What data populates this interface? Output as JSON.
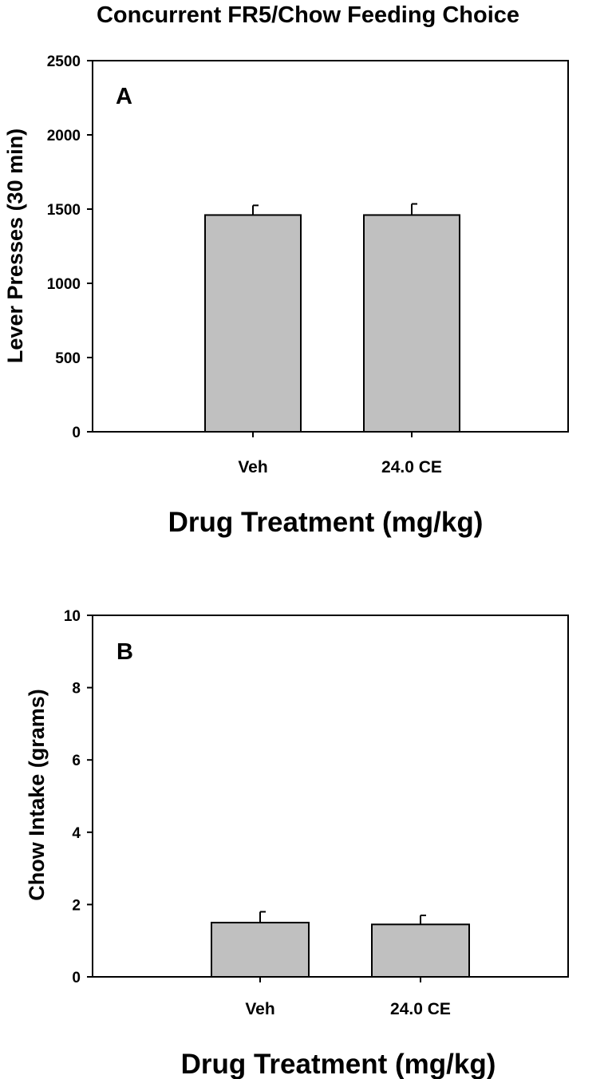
{
  "figure_title": "Concurrent FR5/Chow Feeding Choice",
  "colors": {
    "bar_fill": "#c0c0c0",
    "axis": "#000000",
    "background": "#ffffff"
  },
  "chart_data": [
    {
      "type": "bar",
      "panel_label": "A",
      "categories": [
        "Veh",
        "24.0 CE"
      ],
      "values": [
        1460,
        1460
      ],
      "errors": [
        65,
        75
      ],
      "xlabel": "Drug Treatment (mg/kg)",
      "ylabel": "Lever Presses (30 min)",
      "ylim": [
        0,
        2500
      ],
      "yticks": [
        0,
        500,
        1000,
        1500,
        2000,
        2500
      ],
      "grid": false,
      "legend": "none"
    },
    {
      "type": "bar",
      "panel_label": "B",
      "categories": [
        "Veh",
        "24.0 CE"
      ],
      "values": [
        1.5,
        1.45
      ],
      "errors": [
        0.3,
        0.25
      ],
      "xlabel": "Drug Treatment (mg/kg)",
      "ylabel": "Chow Intake (grams)",
      "ylim": [
        0,
        10
      ],
      "yticks": [
        0,
        2,
        4,
        6,
        8,
        10
      ],
      "grid": false,
      "legend": "none"
    }
  ]
}
